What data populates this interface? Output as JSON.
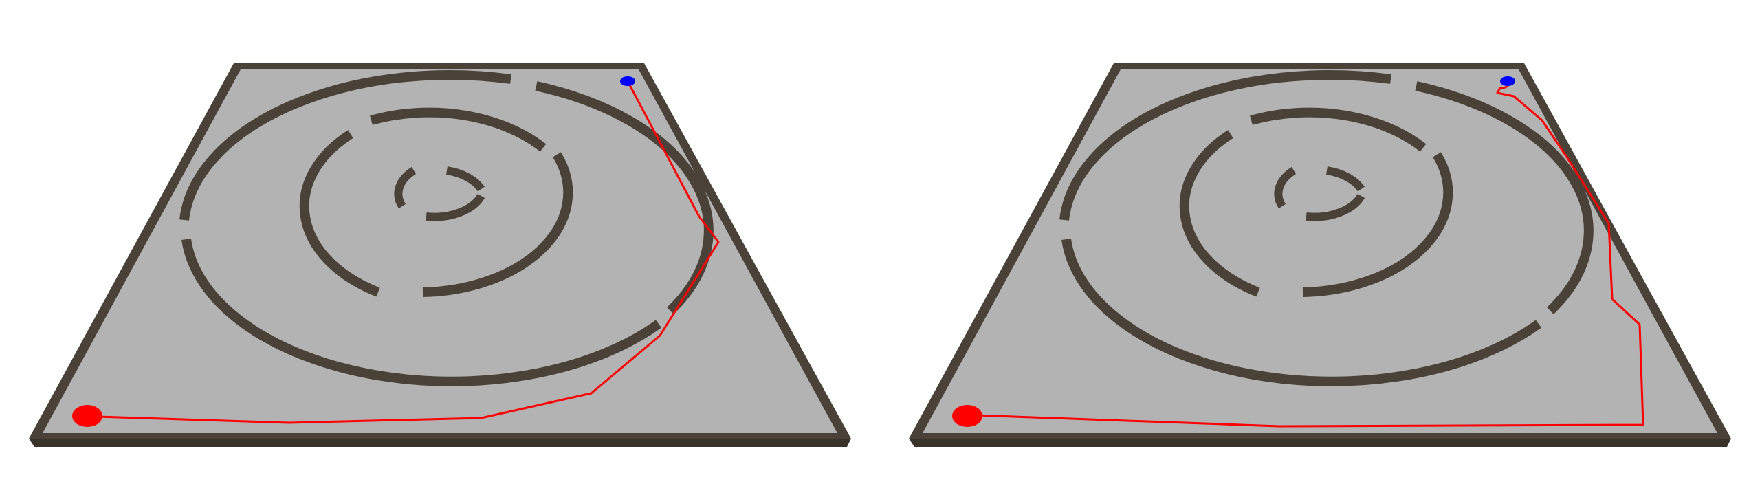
{
  "colors": {
    "background": "#ffffff",
    "floor": "#b3b3b3",
    "wall": "#4a4238",
    "wall_top": "#5e5549",
    "path": "#ff0000",
    "start_marker": "#ff0000",
    "goal_marker": "#0000ff"
  },
  "panels": [
    {
      "id": "left",
      "path_route": "outer-right-arc"
    },
    {
      "id": "right",
      "path_route": "right-side-direct"
    }
  ]
}
